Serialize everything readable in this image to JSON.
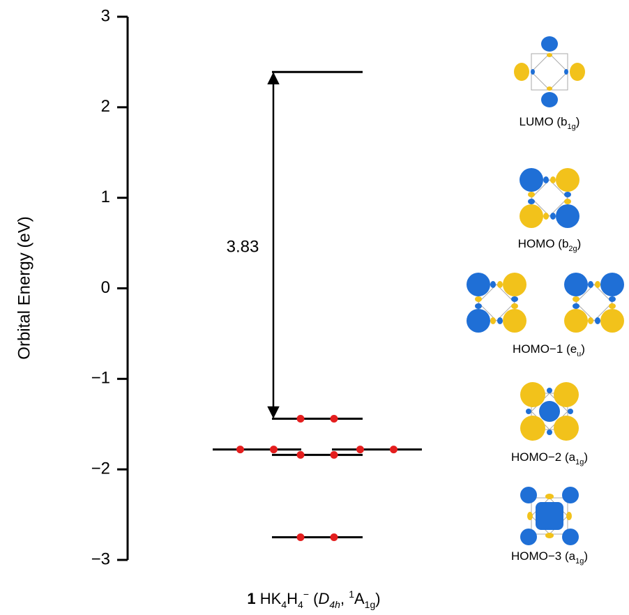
{
  "chart_data": {
    "type": "energy-levels",
    "y_label": "Orbital Energy (eV)",
    "ylim": [
      -3,
      3
    ],
    "yticks": [
      {
        "value": 3,
        "label": "3"
      },
      {
        "value": 2,
        "label": "2"
      },
      {
        "value": 1,
        "label": "1"
      },
      {
        "value": 0,
        "label": "0"
      },
      {
        "value": -1,
        "label": "−1"
      },
      {
        "value": -2,
        "label": "−2"
      },
      {
        "value": -3,
        "label": "−3"
      }
    ],
    "levels": [
      {
        "energy": 2.39,
        "electrons": 0,
        "degeneracy": 1,
        "label_parts": [
          "LUMO (b",
          "1g",
          ")"
        ]
      },
      {
        "energy": -1.44,
        "electrons": 2,
        "degeneracy": 1,
        "label_parts": [
          "HOMO (b",
          "2g",
          ")"
        ]
      },
      {
        "energy": -1.78,
        "electrons": 2,
        "degeneracy": 2,
        "label_parts": [
          "HOMO−1 (e",
          "u",
          ")"
        ]
      },
      {
        "energy": -1.84,
        "electrons": 2,
        "degeneracy": 1,
        "label_parts": [
          "HOMO−2 (a",
          "1g",
          ")"
        ]
      },
      {
        "energy": -2.75,
        "electrons": 2,
        "degeneracy": 1,
        "label_parts": [
          "HOMO−3 (a",
          "1g",
          ")"
        ]
      }
    ],
    "gap": 3.83,
    "electron_color": "#e41e1e",
    "title_parts": [
      {
        "text": "1",
        "style": "bold"
      },
      {
        "text": " HK"
      },
      {
        "text": "4",
        "style": "sub"
      },
      {
        "text": "H"
      },
      {
        "text": "4",
        "style": "sub"
      },
      {
        "text": "−",
        "style": "sup"
      },
      {
        "text": " ("
      },
      {
        "text": "D",
        "style": "italic"
      },
      {
        "text": "4h",
        "style": "sub-italic"
      },
      {
        "text": ", "
      },
      {
        "text": "1",
        "style": "sup"
      },
      {
        "text": "A"
      },
      {
        "text": "1g",
        "style": "sub"
      },
      {
        "text": ")"
      }
    ]
  }
}
